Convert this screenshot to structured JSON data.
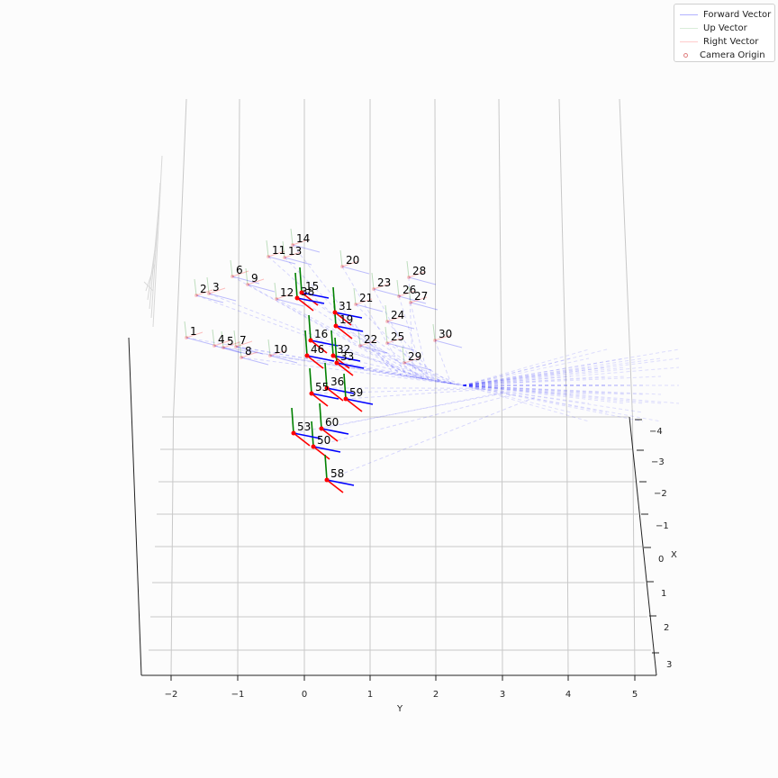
{
  "chart_data": {
    "type": "3d-quiver",
    "axes": {
      "x": {
        "label": "X",
        "ticks": [
          "−4",
          "−3",
          "−2",
          "−1",
          "0",
          "1",
          "2",
          "3"
        ]
      },
      "y": {
        "label": "Y",
        "ticks": [
          "−2",
          "−1",
          "0",
          "1",
          "2",
          "3",
          "4",
          "5"
        ]
      },
      "z": {
        "label": "",
        "ticks": []
      }
    },
    "legend": {
      "placement": "top-right",
      "entries": [
        {
          "label": "Forward Vector",
          "color": "#0000ff",
          "style": "line"
        },
        {
          "label": "Up Vector",
          "color": "#008000",
          "style": "line"
        },
        {
          "label": "Right Vector",
          "color": "#ff0000",
          "style": "line"
        },
        {
          "label": "Camera Origin",
          "color": "#ff0000",
          "style": "marker"
        }
      ]
    },
    "colors": {
      "forward": "#0000ff",
      "up": "#008000",
      "right": "#ff0000"
    },
    "grid": true,
    "camera_labels": [
      "1",
      "2",
      "3",
      "4",
      "5",
      "6",
      "7",
      "8",
      "9",
      "10",
      "11",
      "12",
      "13",
      "14",
      "15",
      "16",
      "19",
      "20",
      "21",
      "22",
      "23",
      "24",
      "25",
      "26",
      "27",
      "28",
      "29",
      "30",
      "31",
      "32",
      "33",
      "36",
      "38",
      "46",
      "50",
      "53",
      "55",
      "58",
      "59",
      "60"
    ]
  }
}
